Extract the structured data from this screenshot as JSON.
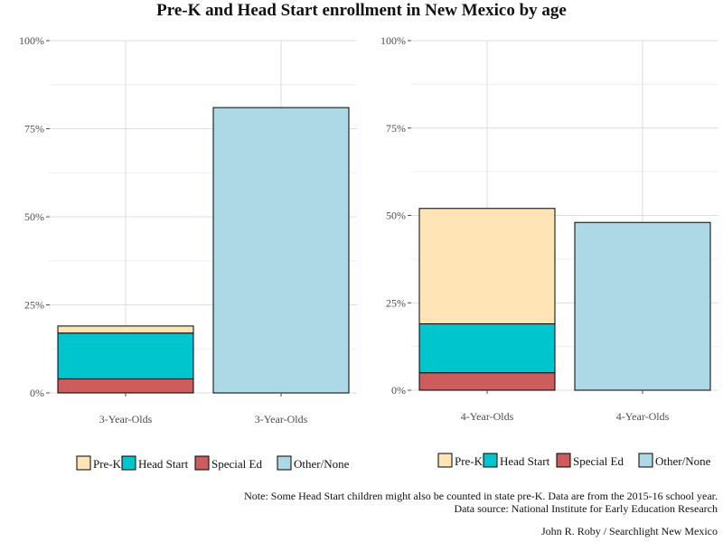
{
  "title": "Pre-K and Head Start enrollment in New Mexico by age",
  "colors": {
    "Pre-K": "#FFE4B5",
    "Head Start": "#00C5CD",
    "Special Ed": "#CD5C5C",
    "Other/None": "#ADD8E6"
  },
  "chart_data": [
    {
      "type": "bar",
      "stacked": true,
      "categories": [
        "3-Year-Olds",
        "3-Year-Olds"
      ],
      "series": [
        {
          "name": "Special Ed",
          "values": [
            4,
            0
          ]
        },
        {
          "name": "Head Start",
          "values": [
            13,
            0
          ]
        },
        {
          "name": "Pre-K",
          "values": [
            2,
            0
          ]
        },
        {
          "name": "Other/None",
          "values": [
            0,
            81
          ]
        }
      ],
      "ylim": [
        0,
        100
      ],
      "yticks": [
        "0%",
        "25%",
        "50%",
        "75%",
        "100%"
      ],
      "legend": [
        "Pre-K",
        "Head Start",
        "Special Ed",
        "Other/None"
      ],
      "legend_position": "bottom",
      "grid": true
    },
    {
      "type": "bar",
      "stacked": true,
      "categories": [
        "4-Year-Olds",
        "4-Year-Olds"
      ],
      "series": [
        {
          "name": "Special Ed",
          "values": [
            5,
            0
          ]
        },
        {
          "name": "Head Start",
          "values": [
            14,
            0
          ]
        },
        {
          "name": "Pre-K",
          "values": [
            33,
            0
          ]
        },
        {
          "name": "Other/None",
          "values": [
            0,
            48
          ]
        }
      ],
      "ylim": [
        0,
        100
      ],
      "yticks": [
        "0%",
        "25%",
        "50%",
        "75%",
        "100%"
      ],
      "legend": [
        "Pre-K",
        "Head Start",
        "Special Ed",
        "Other/None"
      ],
      "legend_position": "bottom",
      "grid": true
    }
  ],
  "notes": {
    "line1": "Note: Some Head Start children might also be counted in state pre-K.  Data are from the 2015-16 school year.",
    "line2": "Data source:  National Institute for Early Education Research",
    "credit": "John R. Roby / Searchlight New Mexico"
  }
}
